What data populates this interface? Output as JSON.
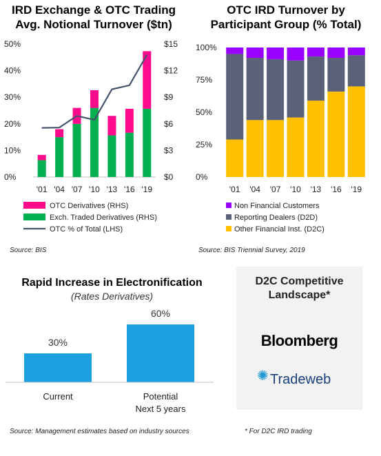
{
  "chart_data": [
    {
      "type": "bar",
      "title": "IRD Exchange & OTC Trading Avg. Notional Turnover ($tn)",
      "categories": [
        "'01",
        "'04",
        "'07",
        "'10",
        "'13",
        "'16",
        "'19"
      ],
      "stacked": true,
      "left_axis": {
        "ticks": [
          "0%",
          "10%",
          "20%",
          "30%",
          "40%",
          "50%"
        ],
        "ylim": [
          0,
          50
        ]
      },
      "right_axis": {
        "ticks": [
          "$0",
          "$3",
          "$6",
          "$9",
          "$12",
          "$15"
        ],
        "ylim": [
          0,
          15
        ]
      },
      "series": [
        {
          "name": "Exch. Traded Derivatives (RHS)",
          "axis": "right",
          "color": "#00b050",
          "values": [
            1.9,
            4.5,
            6.0,
            7.8,
            4.7,
            5.0,
            7.7
          ]
        },
        {
          "name": "OTC Derivatives (RHS)",
          "axis": "right",
          "color": "#ff0a8c",
          "values": [
            0.6,
            0.9,
            1.8,
            2.0,
            2.2,
            2.7,
            6.5
          ]
        },
        {
          "name": "OTC % of Total (LHS)",
          "type": "line",
          "axis": "left",
          "color": "#44546a",
          "values": [
            18.5,
            18.6,
            23.0,
            21.5,
            33.0,
            34.5,
            46.0
          ]
        }
      ],
      "legend_order": [
        "OTC Derivatives (RHS)",
        "Exch. Traded Derivatives (RHS)",
        "OTC % of Total (LHS)"
      ],
      "legend_position": "bottom",
      "source": "Source: BIS"
    },
    {
      "type": "bar",
      "title": "OTC IRD Turnover by Participant Group (% Total)",
      "categories": [
        "'01",
        "'04",
        "'07",
        "'10",
        "'13",
        "'16",
        "'19"
      ],
      "stacked": true,
      "ylim": [
        0,
        100
      ],
      "y_ticks": [
        "0%",
        "25%",
        "50%",
        "75%",
        "100%"
      ],
      "series": [
        {
          "name": "Other Financial Inst. (D2C)",
          "color": "#ffc000",
          "values": [
            29,
            44,
            44,
            46,
            59,
            66,
            70
          ]
        },
        {
          "name": "Reporting Dealers (D2D)",
          "color": "#5a6179",
          "values": [
            66,
            48,
            47,
            44,
            34,
            26,
            24
          ]
        },
        {
          "name": "Non Financial Customers",
          "color": "#9900ff",
          "values": [
            5,
            8,
            9,
            10,
            7,
            8,
            6
          ]
        }
      ],
      "legend_order": [
        "Non Financial Customers",
        "Reporting Dealers (D2D)",
        "Other Financial Inst. (D2C)"
      ],
      "legend_position": "bottom",
      "source": "Source: BIS Triennial Survey, 2019"
    },
    {
      "type": "bar",
      "title": "Rapid Increase in Electronification",
      "subtitle": "(Rates Derivatives)",
      "categories": [
        "Current",
        "Potential\nNext 5 years"
      ],
      "values": [
        30,
        60
      ],
      "data_labels": [
        "30%",
        "60%"
      ],
      "ylim": [
        0,
        60
      ],
      "color": "#1ba1e2",
      "source": "Source: Management estimates based on industry sources"
    }
  ],
  "panel": {
    "title_line1": "D2C Competitive",
    "title_line2": "Landscape*",
    "logos": [
      "Bloomberg",
      "Tradeweb"
    ],
    "footnote": "* For D2C IRD trading"
  }
}
